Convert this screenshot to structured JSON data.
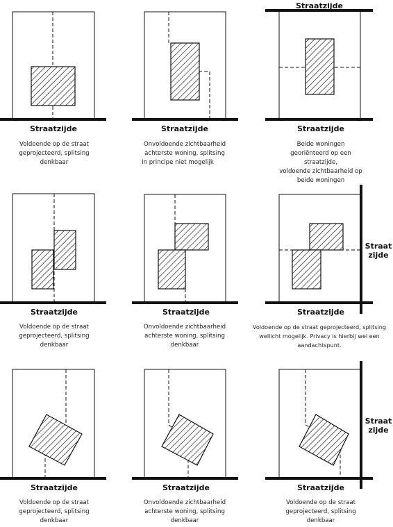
{
  "street_label": "Straatzijde",
  "side_street_label": {
    "line1": "Straat",
    "line2": "zijde"
  },
  "panels": [
    {
      "id": "r1c1",
      "caption": [
        "Voldoende op de straat",
        "geprojecteerd, splitsing",
        "denkbaar"
      ]
    },
    {
      "id": "r1c2",
      "caption": [
        "Onvoldoende zichtbaarheid",
        "achterste woning, splitsing",
        "In principe niet mogelijk"
      ]
    },
    {
      "id": "r1c3",
      "caption": [
        "Beide woningen",
        "georiënteerd op een",
        "straatzijde,",
        "voldoende zichtbaarheid op",
        "beide woningen"
      ]
    },
    {
      "id": "r2c1",
      "caption": [
        "Voldoende op de straat",
        "geprojecteerd, splitsing",
        "denkbaar"
      ]
    },
    {
      "id": "r2c2",
      "caption": [
        "Onvoldoende zichtbaarheid",
        "achterste woning, splitsing",
        "denkbaar"
      ]
    },
    {
      "id": "r2c3",
      "caption": [
        "Voldoende op de straat geprojecteerd, splitsing",
        "wellicht mogelijk. Privacy is hierbij wel een",
        "aandachtspunt."
      ]
    },
    {
      "id": "r3c1",
      "caption": [
        "Voldoende op de straat",
        "geprojecteerd, splitsing",
        "denkbaar"
      ]
    },
    {
      "id": "r3c2",
      "caption": [
        "Onvoldoende zichtbaarheid",
        "achterste woning, splitsing",
        "denkbaar"
      ]
    },
    {
      "id": "r3c3",
      "caption": [
        "Voldoende op de straat",
        "geprojecteerd, splitsing",
        "denkbaar"
      ]
    }
  ]
}
